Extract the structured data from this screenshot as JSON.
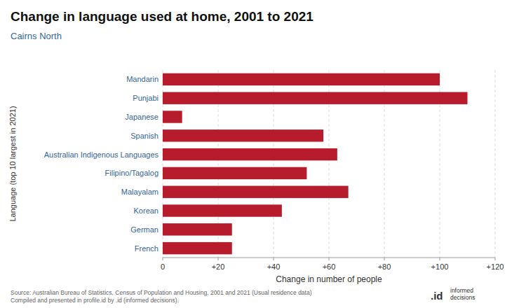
{
  "chart_data": {
    "type": "bar",
    "orientation": "horizontal",
    "title": "Change in language used at home, 2001 to 2021",
    "subtitle": "Cairns North",
    "categories": [
      "French",
      "German",
      "Korean",
      "Malayalam",
      "Filipino/Tagalog",
      "Australian Indigenous Languages",
      "Spanish",
      "Japanese",
      "Punjabi",
      "Mandarin"
    ],
    "values": [
      25,
      25,
      43,
      67,
      52,
      63,
      58,
      7,
      110,
      100
    ],
    "color": "#b71c2c",
    "xlabel": "Change in number of people",
    "ylabel": "Language (top 10 largest in 2021)",
    "xlim": [
      0,
      120
    ],
    "xticks": [
      0,
      {
        "value": 20,
        "label": "+20"
      },
      {
        "value": 40,
        "label": "+40"
      },
      {
        "value": 60,
        "label": "+60"
      },
      {
        "value": 80,
        "label": "+80"
      },
      {
        "value": 100,
        "label": "+100"
      },
      {
        "value": 120,
        "label": "+120"
      }
    ],
    "grid": true,
    "annotations": [
      "Source: Australian Bureau of Statistics, Census of Population and Housing, 2001 and 2021 (Usual residence data)\nCompiled and presented in profile.id by .id (informed decisions).",
      ".id",
      "informed\ndecisions"
    ]
  }
}
